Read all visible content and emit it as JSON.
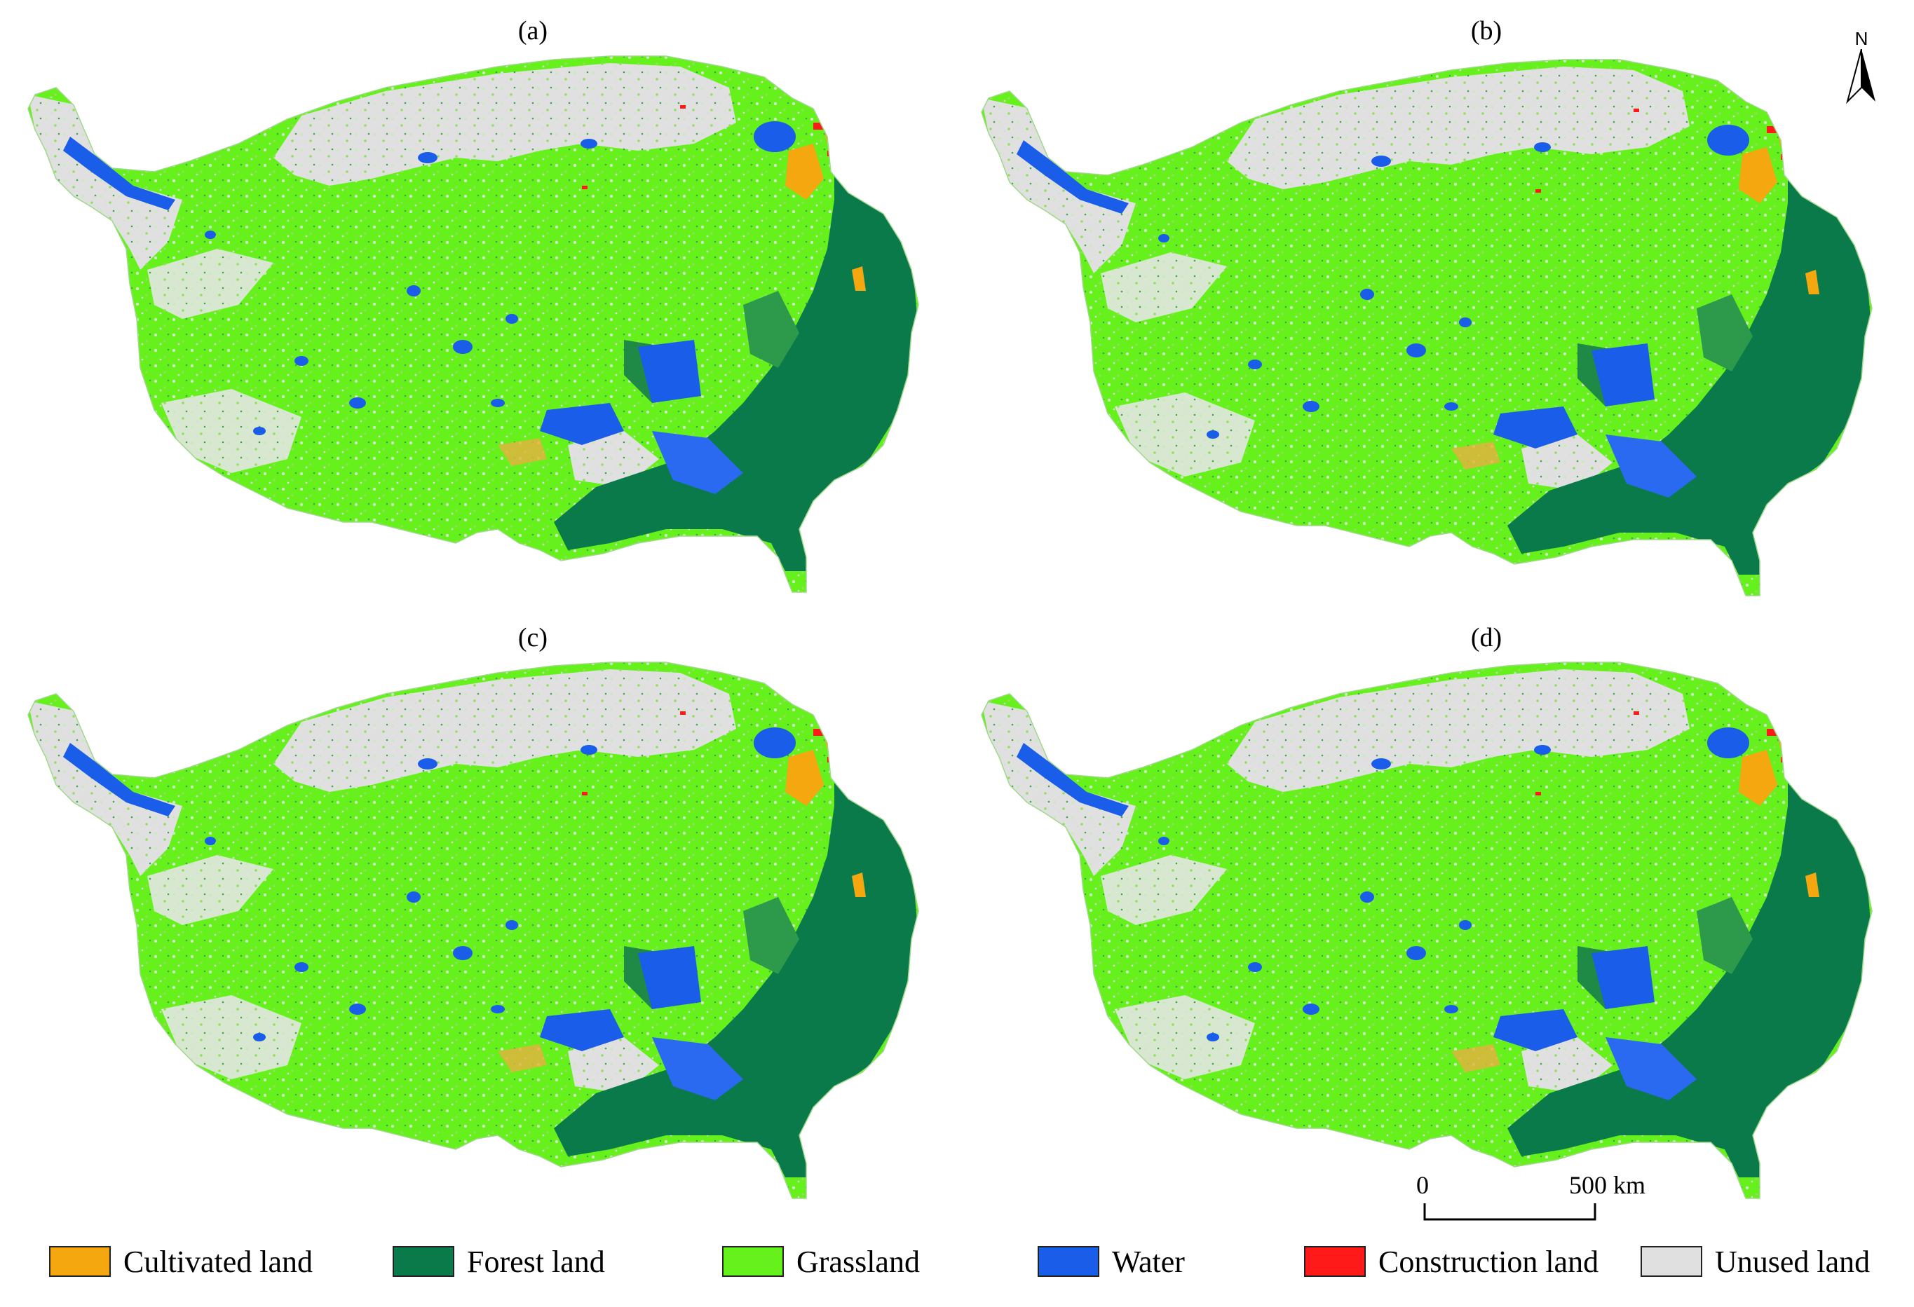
{
  "panels": [
    {
      "label": "(a)"
    },
    {
      "label": "(b)"
    },
    {
      "label": "(c)"
    },
    {
      "label": "(d)"
    }
  ],
  "north_arrow": {
    "letter": "N"
  },
  "scale_bar": {
    "start_label": "0",
    "end_label": "500 km"
  },
  "legend": [
    {
      "label": "Cultivated land",
      "color": "#f5a70f"
    },
    {
      "label": "Forest land",
      "color": "#0b7a4b"
    },
    {
      "label": "Grassland",
      "color": "#66f01c"
    },
    {
      "label": "Water",
      "color": "#1a5de8"
    },
    {
      "label": "Construction land",
      "color": "#ff1a1a"
    },
    {
      "label": "Unused land",
      "color": "#e0e0e0"
    }
  ]
}
